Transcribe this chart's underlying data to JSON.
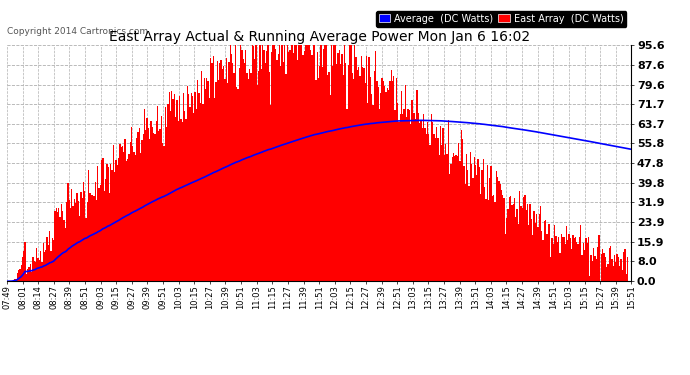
{
  "title": "East Array Actual & Running Average Power Mon Jan 6 16:02",
  "copyright": "Copyright 2014 Cartronics.com",
  "ylabel_right_ticks": [
    0.0,
    8.0,
    15.9,
    23.9,
    31.9,
    39.8,
    47.8,
    55.8,
    63.7,
    71.7,
    79.6,
    87.6,
    95.6
  ],
  "ymax": 95.6,
  "ymin": 0.0,
  "bar_color": "#ff0000",
  "avg_color": "#0000ff",
  "bg_color": "#ffffff",
  "grid_color": "#b0b0b0",
  "title_color": "#000000",
  "legend_avg_bg": "#0000ff",
  "legend_east_bg": "#ff0000",
  "legend_text": [
    "Average  (DC Watts)",
    "East Array  (DC Watts)"
  ],
  "tick_labels": [
    "07:49",
    "08:01",
    "08:14",
    "08:27",
    "08:39",
    "08:51",
    "09:03",
    "09:15",
    "09:27",
    "09:39",
    "09:51",
    "10:03",
    "10:15",
    "10:27",
    "10:39",
    "10:51",
    "11:03",
    "11:15",
    "11:27",
    "11:39",
    "11:51",
    "12:03",
    "12:15",
    "12:27",
    "12:39",
    "12:51",
    "13:03",
    "13:15",
    "13:27",
    "13:39",
    "13:51",
    "14:03",
    "14:15",
    "14:27",
    "14:39",
    "14:51",
    "15:03",
    "15:15",
    "15:27",
    "15:39",
    "15:51"
  ]
}
